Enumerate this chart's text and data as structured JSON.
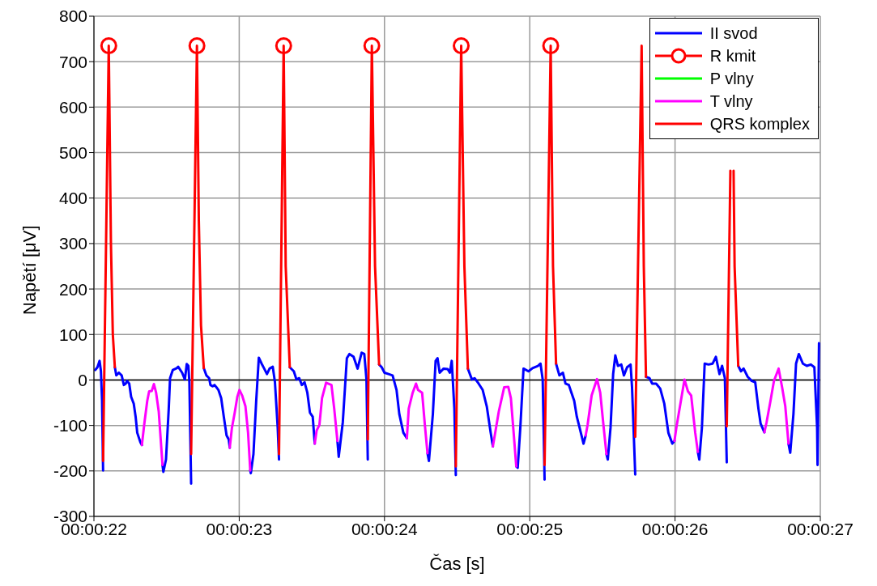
{
  "chart_data": {
    "type": "line",
    "xlabel": "Čas [s]",
    "ylabel": "Napětí [μV]",
    "xlim": [
      22,
      27
    ],
    "xticks": [
      {
        "value": 22,
        "label": "00:00:22"
      },
      {
        "value": 23,
        "label": "00:00:23"
      },
      {
        "value": 24,
        "label": "00:00:24"
      },
      {
        "value": 25,
        "label": "00:00:25"
      },
      {
        "value": 26,
        "label": "00:00:26"
      },
      {
        "value": 27,
        "label": "00:00:27"
      }
    ],
    "ylim": [
      -300,
      800
    ],
    "yticks": [
      -300,
      -200,
      -100,
      0,
      100,
      200,
      300,
      400,
      500,
      600,
      700,
      800
    ],
    "grid": true,
    "legend": "top right",
    "line_style": "solid",
    "ref_lines": [
      {
        "axis": "y",
        "value": 0,
        "color": "#000000"
      }
    ],
    "series": [
      {
        "name": "II svod",
        "color": "#0000ff",
        "x": [
          22.009,
          22.024,
          22.039,
          22.048,
          22.056,
          22.063,
          null,
          22.144,
          22.154,
          22.172,
          22.191,
          22.206,
          22.219,
          22.228,
          22.243,
          22.256,
          22.274,
          22.287,
          22.298,
          22.32,
          22.33,
          null,
          22.472,
          22.478,
          22.496,
          22.515,
          22.524,
          22.543,
          22.57,
          22.58,
          22.607,
          22.626,
          22.639,
          22.65,
          22.657,
          22.669,
          null,
          22.756,
          22.774,
          22.793,
          22.802,
          22.817,
          22.83,
          22.843,
          22.857,
          22.876,
          22.894,
          22.913,
          22.928,
          22.935,
          null,
          23.076,
          23.08,
          23.098,
          23.117,
          23.135,
          23.154,
          23.172,
          23.191,
          23.209,
          23.231,
          23.246,
          23.265,
          23.274,
          null,
          23.348,
          23.376,
          23.394,
          23.413,
          23.431,
          23.45,
          23.469,
          23.487,
          23.506,
          23.52,
          null,
          23.676,
          23.685,
          23.713,
          23.741,
          23.759,
          23.787,
          23.815,
          23.843,
          23.861,
          23.876,
          23.885,
          null,
          23.963,
          23.981,
          24.0,
          24.028,
          24.056,
          24.083,
          24.102,
          24.13,
          24.154,
          null,
          24.296,
          24.306,
          24.333,
          24.352,
          24.365,
          24.38,
          24.407,
          24.435,
          24.45,
          24.463,
          24.481,
          24.491,
          null,
          24.574,
          24.602,
          24.62,
          24.648,
          24.676,
          24.704,
          24.731,
          24.746,
          null,
          24.907,
          24.917,
          24.935,
          24.957,
          24.991,
          25.019,
          25.056,
          25.074,
          25.089,
          25.102,
          null,
          25.181,
          25.204,
          25.228,
          25.246,
          25.269,
          25.287,
          25.306,
          25.324,
          25.343,
          25.37,
          25.385,
          null,
          25.528,
          25.537,
          25.556,
          25.574,
          25.589,
          25.607,
          25.63,
          25.648,
          25.67,
          25.694,
          25.704,
          25.726,
          null,
          25.8,
          25.824,
          25.843,
          25.87,
          25.898,
          25.926,
          25.954,
          25.981,
          25.996,
          null,
          26.157,
          26.167,
          26.185,
          26.204,
          26.231,
          26.259,
          26.281,
          26.306,
          26.324,
          26.343,
          26.356,
          null,
          26.435,
          26.454,
          26.472,
          26.5,
          26.528,
          26.552,
          26.574,
          26.589,
          26.615,
          null,
          26.781,
          26.793,
          26.815,
          26.833,
          26.852,
          26.88,
          26.907,
          26.935,
          26.959,
          26.978,
          26.981,
          26.991
        ],
        "values": [
          22,
          28,
          42,
          20,
          -46,
          -199,
          null,
          28,
          10,
          16,
          10,
          -11,
          -8,
          -2,
          -8,
          -37,
          -52,
          -81,
          -116,
          -137,
          -143,
          null,
          -187,
          -202,
          -175,
          -63,
          4,
          22,
          26,
          29,
          16,
          1,
          35,
          31,
          -5,
          -228,
          null,
          26,
          10,
          4,
          -11,
          -14,
          -11,
          -16,
          -22,
          -40,
          -81,
          -122,
          -131,
          -149,
          null,
          -199,
          -205,
          -163,
          -46,
          49,
          36,
          25,
          13,
          25,
          29,
          -5,
          -105,
          -175,
          null,
          28,
          19,
          1,
          4,
          -11,
          -5,
          -28,
          -72,
          -81,
          -140,
          null,
          -134,
          -169,
          -93,
          48,
          57,
          51,
          25,
          60,
          57,
          1,
          -175,
          null,
          34,
          28,
          16,
          13,
          10,
          -22,
          -75,
          -116,
          -128,
          null,
          -161,
          -178,
          -75,
          42,
          48,
          16,
          25,
          24,
          16,
          42,
          -63,
          -209,
          null,
          25,
          1,
          4,
          -8,
          -22,
          -58,
          -116,
          -146,
          null,
          -190,
          -193,
          -105,
          25,
          19,
          26,
          31,
          36,
          1,
          -219,
          null,
          36,
          10,
          16,
          -8,
          -11,
          -28,
          -46,
          -81,
          -105,
          -140,
          -122,
          null,
          -163,
          -175,
          -105,
          13,
          54,
          31,
          34,
          10,
          28,
          34,
          -16,
          -208,
          null,
          7,
          4,
          -8,
          -8,
          -19,
          -52,
          -116,
          -140,
          -134,
          null,
          -158,
          -175,
          -105,
          36,
          34,
          36,
          51,
          13,
          31,
          4,
          -181,
          null,
          31,
          19,
          25,
          7,
          -2,
          -5,
          -63,
          -96,
          -115,
          null,
          -140,
          -160,
          -75,
          36,
          57,
          36,
          31,
          34,
          28,
          -105,
          -187,
          81
        ]
      },
      {
        "name": "R kmit",
        "type": "scatter",
        "color": "#ff0000",
        "marker": "circle",
        "x": [
          22.102,
          22.709,
          23.306,
          23.913,
          24.528,
          25.144
        ],
        "values": [
          735,
          735,
          735,
          735,
          735,
          735
        ]
      },
      {
        "name": "P vlny",
        "color": "#00ff00"
      },
      {
        "name": "T vlny",
        "color": "#ff00ff",
        "x": [
          22.33,
          22.348,
          22.367,
          22.38,
          22.398,
          22.413,
          22.428,
          22.446,
          22.459,
          22.472,
          null,
          22.935,
          22.95,
          22.969,
          22.987,
          23.002,
          23.02,
          23.043,
          23.061,
          23.076,
          null,
          23.52,
          23.533,
          23.552,
          23.57,
          23.598,
          23.635,
          23.654,
          23.676,
          null,
          24.154,
          24.167,
          24.194,
          24.217,
          24.231,
          24.259,
          24.278,
          24.296,
          null,
          24.746,
          24.759,
          24.787,
          24.824,
          24.852,
          24.87,
          24.889,
          24.907,
          null,
          25.385,
          25.398,
          25.426,
          25.463,
          25.485,
          25.509,
          25.528,
          null,
          25.996,
          26.009,
          26.037,
          26.065,
          26.089,
          26.111,
          26.139,
          26.157,
          null,
          26.615,
          26.63,
          26.657,
          26.681,
          26.713,
          26.737,
          26.759,
          26.781
        ],
        "values": [
          -143,
          -93,
          -46,
          -25,
          -24,
          -9,
          -28,
          -69,
          -128,
          -187,
          null,
          -149,
          -105,
          -72,
          -37,
          -22,
          -34,
          -58,
          -116,
          -199,
          null,
          -140,
          -111,
          -99,
          -40,
          -6,
          -11,
          -63,
          -134,
          null,
          -128,
          -63,
          -28,
          -8,
          -22,
          -28,
          -99,
          -161,
          null,
          -146,
          -122,
          -69,
          -16,
          -15,
          -40,
          -116,
          -190,
          null,
          -122,
          -99,
          -34,
          2,
          -28,
          -105,
          -163,
          null,
          -134,
          -105,
          -52,
          1,
          -25,
          -34,
          -116,
          -158,
          null,
          -115,
          -93,
          -46,
          -2,
          25,
          -16,
          -58,
          -140
        ]
      },
      {
        "name": "QRS komplex",
        "color": "#ff0000",
        "x": [
          22.063,
          22.102,
          22.117,
          22.13,
          22.144,
          null,
          22.669,
          22.709,
          22.722,
          22.737,
          22.756,
          null,
          23.274,
          23.306,
          23.32,
          23.348,
          null,
          23.885,
          23.913,
          23.935,
          23.963,
          null,
          24.491,
          24.528,
          24.55,
          24.574,
          null,
          25.102,
          25.144,
          25.16,
          25.181,
          null,
          25.726,
          25.77,
          25.785,
          25.8,
          null,
          26.356,
          26.381,
          null,
          26.403,
          26.41,
          26.435
        ],
        "values": [
          -178,
          735,
          300,
          100,
          28,
          null,
          -163,
          735,
          350,
          120,
          26,
          null,
          -163,
          735,
          250,
          28,
          null,
          -131,
          735,
          250,
          34,
          null,
          -190,
          735,
          250,
          25,
          null,
          -187,
          735,
          250,
          36,
          null,
          -125,
          735,
          250,
          7,
          null,
          -102,
          460,
          null,
          460,
          250,
          31
        ]
      }
    ]
  }
}
